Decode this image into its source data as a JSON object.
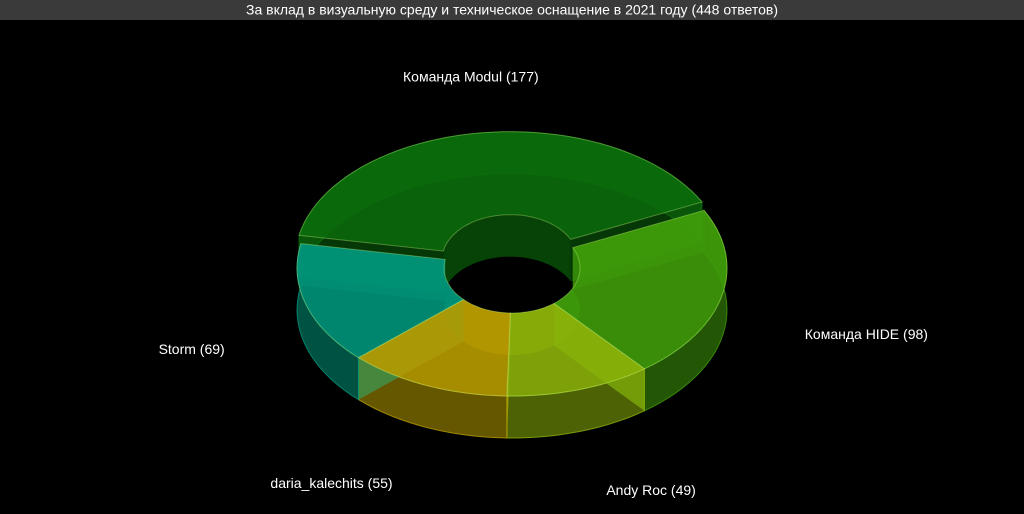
{
  "chart_data": {
    "type": "pie3d",
    "title": "За вклад в визуальную среду и техническое оснащение в 2021 году (448 ответов)",
    "categories": [
      "Команда Modul (177)",
      "Команда HIDE (98)",
      "Andy Roc (49)",
      "daria_kalechits (55)",
      "Storm (69)"
    ],
    "values": [
      177,
      98,
      49,
      55,
      69
    ],
    "colors": [
      "#0b6e0b",
      "#3f9c0a",
      "#8cb30a",
      "#b89c00",
      "#00957a"
    ]
  }
}
